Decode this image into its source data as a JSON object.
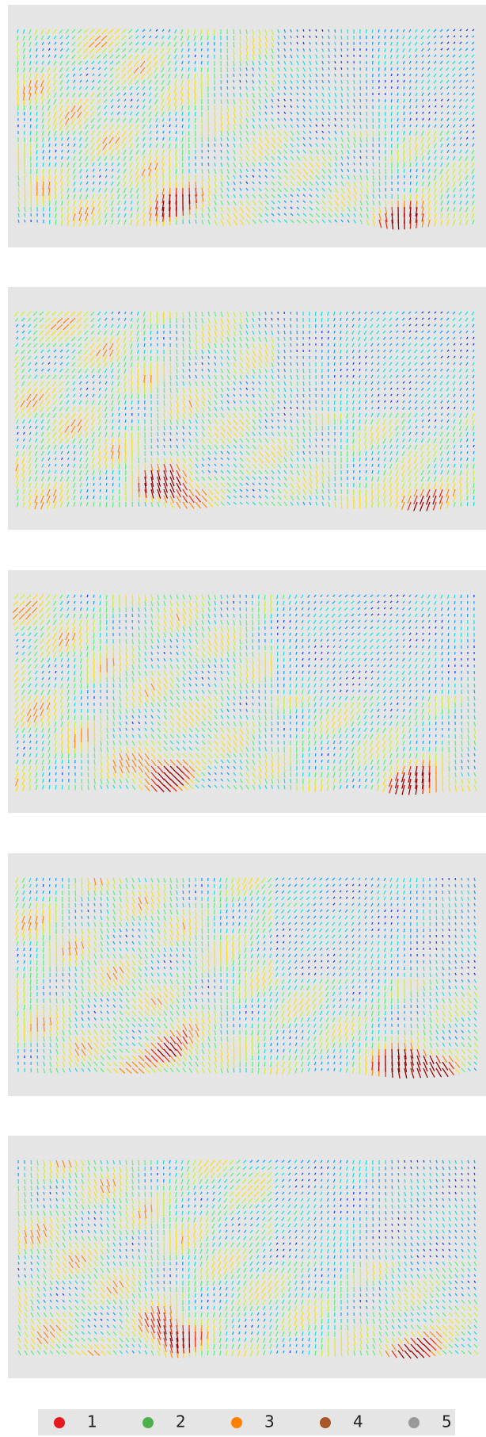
{
  "legend": {
    "items": [
      {
        "label": "1",
        "color": "#e41a1c"
      },
      {
        "label": "2",
        "color": "#4daf4a"
      },
      {
        "label": "3",
        "color": "#ff7f00"
      },
      {
        "label": "4",
        "color": "#a65628"
      },
      {
        "label": "5",
        "color": "#999999"
      }
    ]
  }
}
